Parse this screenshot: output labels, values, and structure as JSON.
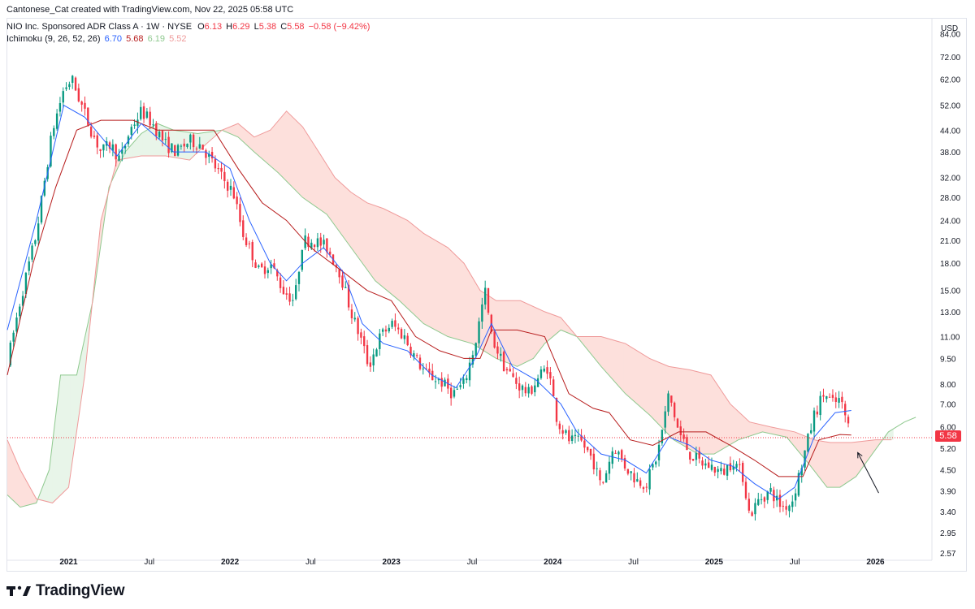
{
  "header": {
    "created_by": "Cantonese_Cat created with TradingView.com, Nov 22, 2025 05:58 UTC",
    "symbol": "NIO Inc. Sponsored ADR Class A · 1W · NYSE",
    "ohlc": {
      "o_label": "O",
      "o": "6.13",
      "h_label": "H",
      "h": "6.29",
      "l_label": "L",
      "l": "5.38",
      "c_label": "C",
      "c": "5.58",
      "change": "−0.58 (−9.42%)"
    },
    "indicator": {
      "name": "Ichimoku (9, 26, 52, 26)",
      "v1": "6.70",
      "v2": "5.68",
      "v3": "6.19",
      "v4": "5.52"
    }
  },
  "currency_label": "USD",
  "last_price_label": "5.58",
  "footer": {
    "brand": "TradingView"
  },
  "colors": {
    "up": "#089981",
    "down": "#f23645",
    "conversion": "#2962ff",
    "base": "#b71c1c",
    "lead_a": "#8fc98f",
    "lead_b": "#ef9a9a",
    "cloud_bull": "#e8f5e9",
    "cloud_bear": "#fde0dc",
    "current_price_line": "#f23645"
  },
  "chart_data": {
    "type": "candlestick",
    "title": "NIO Inc. Sponsored ADR Class A · 1W · NYSE",
    "y_scale": "log",
    "ylim": [
      2.45,
      93
    ],
    "y_ticks": [
      "84.00",
      "72.00",
      "62.00",
      "52.00",
      "44.00",
      "38.00",
      "32.00",
      "28.00",
      "24.00",
      "21.00",
      "18.00",
      "15.00",
      "13.00",
      "11.00",
      "9.50",
      "8.00",
      "7.00",
      "6.00",
      "5.20",
      "4.50",
      "3.90",
      "3.40",
      "2.95",
      "2.57"
    ],
    "x_ticks": [
      {
        "label": "2021",
        "t": 2021.0
      },
      {
        "label": "Jul",
        "t": 2021.5
      },
      {
        "label": "2022",
        "t": 2022.0
      },
      {
        "label": "Jul",
        "t": 2022.5
      },
      {
        "label": "2023",
        "t": 2023.0
      },
      {
        "label": "Jul",
        "t": 2023.5
      },
      {
        "label": "2024",
        "t": 2024.0
      },
      {
        "label": "Jul",
        "t": 2024.5
      },
      {
        "label": "2025",
        "t": 2025.0
      },
      {
        "label": "Jul",
        "t": 2025.5
      },
      {
        "label": "2026",
        "t": 2026.0
      }
    ],
    "xlim": [
      2020.62,
      2026.35
    ],
    "price_path": [
      [
        2020.62,
        9.2
      ],
      [
        2020.7,
        14
      ],
      [
        2020.8,
        22
      ],
      [
        2020.9,
        44
      ],
      [
        2020.97,
        58
      ],
      [
        2021.02,
        62
      ],
      [
        2021.08,
        52
      ],
      [
        2021.14,
        44
      ],
      [
        2021.2,
        38
      ],
      [
        2021.26,
        40
      ],
      [
        2021.32,
        36
      ],
      [
        2021.38,
        44
      ],
      [
        2021.45,
        50
      ],
      [
        2021.52,
        46
      ],
      [
        2021.6,
        40
      ],
      [
        2021.67,
        38
      ],
      [
        2021.75,
        41
      ],
      [
        2021.82,
        40
      ],
      [
        2021.88,
        36
      ],
      [
        2021.95,
        32
      ],
      [
        2022.02,
        29
      ],
      [
        2022.08,
        22
      ],
      [
        2022.14,
        19
      ],
      [
        2022.18,
        17
      ],
      [
        2022.25,
        18
      ],
      [
        2022.33,
        15
      ],
      [
        2022.4,
        14
      ],
      [
        2022.45,
        21
      ],
      [
        2022.52,
        21
      ],
      [
        2022.6,
        20
      ],
      [
        2022.68,
        17
      ],
      [
        2022.75,
        13
      ],
      [
        2022.82,
        10.5
      ],
      [
        2022.86,
        9.0
      ],
      [
        2022.93,
        11
      ],
      [
        2023.0,
        12
      ],
      [
        2023.08,
        11
      ],
      [
        2023.15,
        9.5
      ],
      [
        2023.22,
        8.5
      ],
      [
        2023.3,
        8.2
      ],
      [
        2023.38,
        7.5
      ],
      [
        2023.45,
        8.0
      ],
      [
        2023.52,
        10.5
      ],
      [
        2023.58,
        15
      ],
      [
        2023.62,
        11
      ],
      [
        2023.7,
        9.0
      ],
      [
        2023.78,
        8.0
      ],
      [
        2023.85,
        7.5
      ],
      [
        2023.92,
        8.5
      ],
      [
        2023.97,
        9.0
      ],
      [
        2024.03,
        6.2
      ],
      [
        2024.1,
        5.5
      ],
      [
        2024.18,
        5.4
      ],
      [
        2024.25,
        4.8
      ],
      [
        2024.3,
        4.0
      ],
      [
        2024.38,
        5.3
      ],
      [
        2024.45,
        4.6
      ],
      [
        2024.52,
        4.2
      ],
      [
        2024.58,
        4.1
      ],
      [
        2024.65,
        5.0
      ],
      [
        2024.72,
        7.5
      ],
      [
        2024.78,
        5.8
      ],
      [
        2024.85,
        5.0
      ],
      [
        2024.92,
        4.7
      ],
      [
        2024.98,
        4.6
      ],
      [
        2025.05,
        4.4
      ],
      [
        2025.12,
        4.8
      ],
      [
        2025.18,
        4.3
      ],
      [
        2025.22,
        3.3
      ],
      [
        2025.28,
        3.7
      ],
      [
        2025.35,
        3.9
      ],
      [
        2025.42,
        3.5
      ],
      [
        2025.48,
        3.6
      ],
      [
        2025.55,
        4.8
      ],
      [
        2025.62,
        6.5
      ],
      [
        2025.68,
        7.5
      ],
      [
        2025.74,
        7.0
      ],
      [
        2025.78,
        7.2
      ],
      [
        2025.82,
        6.3
      ],
      [
        2025.85,
        5.58
      ]
    ],
    "conversion_line": [
      [
        2020.62,
        11.5
      ],
      [
        2020.8,
        24
      ],
      [
        2020.97,
        52
      ],
      [
        2021.1,
        48
      ],
      [
        2021.3,
        37
      ],
      [
        2021.45,
        46
      ],
      [
        2021.65,
        38
      ],
      [
        2021.85,
        38
      ],
      [
        2022.0,
        34
      ],
      [
        2022.12,
        24
      ],
      [
        2022.25,
        18
      ],
      [
        2022.35,
        16
      ],
      [
        2022.45,
        18
      ],
      [
        2022.58,
        20
      ],
      [
        2022.7,
        17
      ],
      [
        2022.82,
        12
      ],
      [
        2022.95,
        10.5
      ],
      [
        2023.1,
        10
      ],
      [
        2023.25,
        8.5
      ],
      [
        2023.4,
        7.8
      ],
      [
        2023.52,
        9.5
      ],
      [
        2023.62,
        12
      ],
      [
        2023.75,
        9.0
      ],
      [
        2023.9,
        8.2
      ],
      [
        2024.05,
        7.0
      ],
      [
        2024.15,
        5.8
      ],
      [
        2024.3,
        5.0
      ],
      [
        2024.45,
        4.8
      ],
      [
        2024.58,
        4.4
      ],
      [
        2024.72,
        5.6
      ],
      [
        2024.85,
        5.3
      ],
      [
        2024.98,
        4.8
      ],
      [
        2025.12,
        4.6
      ],
      [
        2025.25,
        4.1
      ],
      [
        2025.4,
        3.7
      ],
      [
        2025.5,
        4.0
      ],
      [
        2025.62,
        5.6
      ],
      [
        2025.75,
        6.6
      ],
      [
        2025.85,
        6.7
      ]
    ],
    "base_line": [
      [
        2020.62,
        8.5
      ],
      [
        2020.78,
        18
      ],
      [
        2020.92,
        30
      ],
      [
        2021.05,
        44
      ],
      [
        2021.2,
        47
      ],
      [
        2021.4,
        47
      ],
      [
        2021.55,
        44
      ],
      [
        2021.75,
        44
      ],
      [
        2021.9,
        44
      ],
      [
        2022.05,
        34
      ],
      [
        2022.2,
        27
      ],
      [
        2022.35,
        24
      ],
      [
        2022.5,
        20
      ],
      [
        2022.7,
        17
      ],
      [
        2022.85,
        15
      ],
      [
        2023.0,
        14
      ],
      [
        2023.15,
        11
      ],
      [
        2023.3,
        10
      ],
      [
        2023.45,
        9.5
      ],
      [
        2023.55,
        9.5
      ],
      [
        2023.62,
        11.5
      ],
      [
        2023.78,
        11.5
      ],
      [
        2023.95,
        11
      ],
      [
        2024.1,
        7.5
      ],
      [
        2024.25,
        6.8
      ],
      [
        2024.35,
        6.6
      ],
      [
        2024.48,
        5.5
      ],
      [
        2024.62,
        5.3
      ],
      [
        2024.78,
        5.8
      ],
      [
        2024.95,
        5.8
      ],
      [
        2025.1,
        5.3
      ],
      [
        2025.25,
        4.8
      ],
      [
        2025.4,
        4.3
      ],
      [
        2025.55,
        4.3
      ],
      [
        2025.65,
        5.5
      ],
      [
        2025.78,
        5.7
      ],
      [
        2025.85,
        5.68
      ]
    ],
    "leading_span_a": [
      [
        2020.62,
        3.8
      ],
      [
        2020.7,
        3.5
      ],
      [
        2020.8,
        3.6
      ],
      [
        2020.88,
        4.5
      ],
      [
        2020.95,
        8.5
      ],
      [
        2021.05,
        8.5
      ],
      [
        2021.15,
        14
      ],
      [
        2021.25,
        30
      ],
      [
        2021.35,
        38
      ],
      [
        2021.45,
        43
      ],
      [
        2021.55,
        46
      ],
      [
        2021.65,
        44
      ],
      [
        2021.8,
        43
      ],
      [
        2021.95,
        44
      ],
      [
        2022.05,
        42
      ],
      [
        2022.15,
        38
      ],
      [
        2022.3,
        33
      ],
      [
        2022.45,
        28
      ],
      [
        2022.6,
        25
      ],
      [
        2022.75,
        20
      ],
      [
        2022.9,
        16
      ],
      [
        2023.05,
        14
      ],
      [
        2023.2,
        12
      ],
      [
        2023.35,
        11
      ],
      [
        2023.5,
        10.5
      ],
      [
        2023.65,
        9.5
      ],
      [
        2023.78,
        9.0
      ],
      [
        2023.88,
        9.5
      ],
      [
        2023.95,
        10.5
      ],
      [
        2024.05,
        11.5
      ],
      [
        2024.15,
        11
      ],
      [
        2024.3,
        9.0
      ],
      [
        2024.45,
        7.5
      ],
      [
        2024.6,
        6.5
      ],
      [
        2024.75,
        5.5
      ],
      [
        2024.9,
        5.0
      ],
      [
        2025.0,
        5.0
      ],
      [
        2025.15,
        5.5
      ],
      [
        2025.3,
        5.8
      ],
      [
        2025.45,
        5.6
      ],
      [
        2025.6,
        4.6
      ],
      [
        2025.7,
        4.0
      ],
      [
        2025.78,
        4.0
      ],
      [
        2025.88,
        4.3
      ],
      [
        2025.98,
        5.0
      ],
      [
        2026.08,
        5.8
      ],
      [
        2026.18,
        6.2
      ],
      [
        2026.25,
        6.4
      ]
    ],
    "leading_span_b": [
      [
        2020.62,
        5.5
      ],
      [
        2020.7,
        4.5
      ],
      [
        2020.8,
        3.7
      ],
      [
        2020.9,
        3.6
      ],
      [
        2021.0,
        4.0
      ],
      [
        2021.1,
        8.5
      ],
      [
        2021.2,
        24
      ],
      [
        2021.3,
        36
      ],
      [
        2021.45,
        37
      ],
      [
        2021.6,
        37
      ],
      [
        2021.75,
        36
      ],
      [
        2021.85,
        40
      ],
      [
        2021.95,
        44
      ],
      [
        2022.05,
        46
      ],
      [
        2022.15,
        42
      ],
      [
        2022.25,
        44
      ],
      [
        2022.35,
        50
      ],
      [
        2022.45,
        45
      ],
      [
        2022.55,
        38
      ],
      [
        2022.65,
        32
      ],
      [
        2022.75,
        29
      ],
      [
        2022.85,
        27
      ],
      [
        2022.95,
        26
      ],
      [
        2023.1,
        24
      ],
      [
        2023.2,
        22
      ],
      [
        2023.35,
        20
      ],
      [
        2023.45,
        18
      ],
      [
        2023.55,
        15
      ],
      [
        2023.65,
        14
      ],
      [
        2023.8,
        14
      ],
      [
        2023.95,
        13
      ],
      [
        2024.05,
        12.5
      ],
      [
        2024.15,
        11
      ],
      [
        2024.3,
        11
      ],
      [
        2024.45,
        10.5
      ],
      [
        2024.6,
        9.5
      ],
      [
        2024.72,
        9.0
      ],
      [
        2024.85,
        8.8
      ],
      [
        2024.98,
        8.5
      ],
      [
        2025.1,
        7.0
      ],
      [
        2025.22,
        6.2
      ],
      [
        2025.35,
        6.0
      ],
      [
        2025.5,
        5.8
      ],
      [
        2025.62,
        5.5
      ],
      [
        2025.72,
        5.4
      ],
      [
        2025.85,
        5.4
      ],
      [
        2026.0,
        5.5
      ],
      [
        2026.1,
        5.5
      ]
    ],
    "current_price": 5.58,
    "annotations": [
      {
        "type": "arrow",
        "from": [
          2026.02,
          3.85
        ],
        "to": [
          2025.89,
          5.05
        ],
        "text": ""
      }
    ]
  }
}
